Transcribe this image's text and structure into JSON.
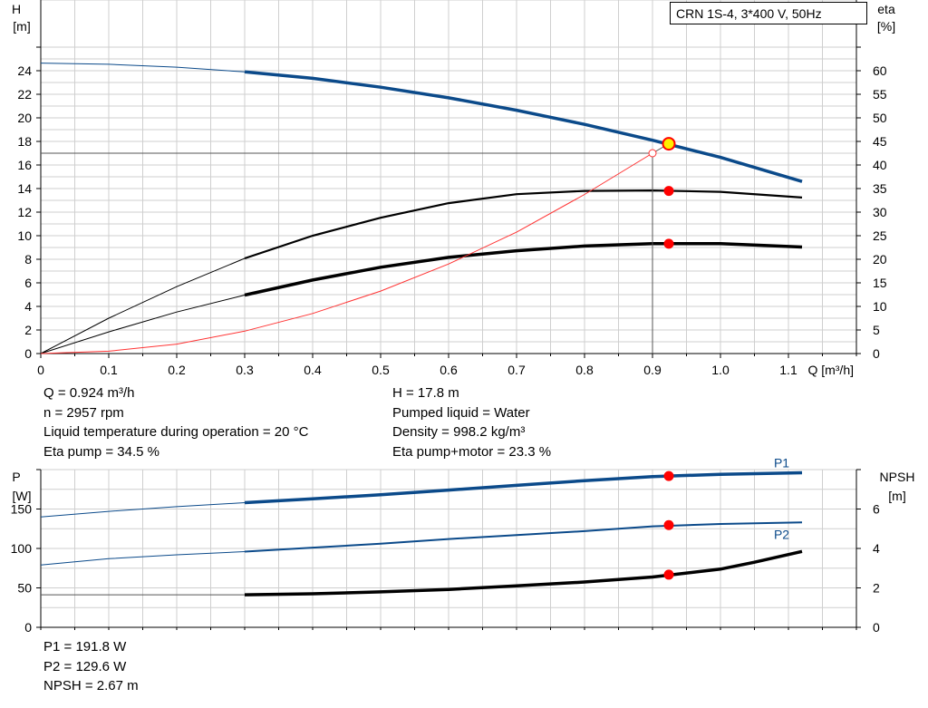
{
  "title_box": "CRN 1S-4, 3*400 V, 50Hz",
  "top_axes": {
    "h_label": "H",
    "h_unit": "[m]",
    "eta_label": "eta",
    "eta_unit": "[%]",
    "q_label": "Q [m³/h]"
  },
  "bottom_axes": {
    "p_label": "P",
    "p_unit": "[W]",
    "npsh_label": "NPSH",
    "npsh_unit": "[m]"
  },
  "info_left": [
    "Q = 0.924 m³/h",
    "n = 2957 rpm",
    "Liquid temperature during operation = 20 °C",
    "Eta pump = 34.5 %"
  ],
  "info_right": [
    "H = 17.8 m",
    "Pumped liquid = Water",
    "Density = 998.2 kg/m³",
    "Eta pump+motor = 23.3 %"
  ],
  "info_bottom": [
    "P1 = 191.8 W",
    "P2 = 129.6 W",
    "NPSH = 2.67 m"
  ],
  "colors": {
    "head": "#0b4a8a",
    "eta": "#000000",
    "system": "#ff3333",
    "marker": "#ff0000",
    "duty_marker": "#ffee00",
    "grid": "#cfcfcf"
  },
  "chart_data": [
    {
      "type": "line",
      "x_tick_labels": [
        "0",
        "0.1",
        "0.2",
        "0.3",
        "0.4",
        "0.5",
        "0.6",
        "0.7",
        "0.8",
        "0.9",
        "1.0",
        "1.1"
      ],
      "xlim": [
        0,
        1.2
      ],
      "ylim_left": [
        0,
        26
      ],
      "ylim_right": [
        0,
        65
      ],
      "y_left_ticks": [
        0,
        2,
        4,
        6,
        8,
        10,
        12,
        14,
        16,
        18,
        20,
        22,
        24
      ],
      "y_right_ticks": [
        0,
        5,
        10,
        15,
        20,
        25,
        30,
        35,
        40,
        45,
        50,
        55,
        60
      ],
      "grid": true,
      "series": [
        {
          "key": "head",
          "axis": "left",
          "x": [
            0,
            0.1,
            0.2,
            0.3,
            0.4,
            0.5,
            0.6,
            0.7,
            0.8,
            0.9,
            1.0,
            1.12
          ],
          "y": [
            24.65,
            24.55,
            24.3,
            23.9,
            23.35,
            22.6,
            21.7,
            20.65,
            19.45,
            18.1,
            16.65,
            14.6
          ]
        },
        {
          "key": "eta_pump",
          "axis": "right",
          "x": [
            0,
            0.1,
            0.2,
            0.3,
            0.4,
            0.5,
            0.6,
            0.7,
            0.8,
            0.9,
            1.0,
            1.12
          ],
          "y": [
            0,
            7.5,
            14.2,
            20.2,
            25.0,
            28.8,
            31.9,
            33.8,
            34.5,
            34.6,
            34.3,
            33.1
          ]
        },
        {
          "key": "eta_pump_motor",
          "axis": "right",
          "x": [
            0,
            0.1,
            0.2,
            0.3,
            0.4,
            0.5,
            0.6,
            0.7,
            0.8,
            0.9,
            1.0,
            1.12
          ],
          "y": [
            0,
            4.6,
            8.8,
            12.4,
            15.6,
            18.3,
            20.4,
            21.8,
            22.8,
            23.3,
            23.3,
            22.6
          ]
        },
        {
          "key": "system",
          "axis": "left",
          "x": [
            0,
            0.1,
            0.2,
            0.3,
            0.4,
            0.5,
            0.6,
            0.7,
            0.8,
            0.9
          ],
          "y": [
            0,
            0.2,
            0.8,
            1.9,
            3.4,
            5.3,
            7.6,
            10.3,
            13.5,
            17.0
          ]
        }
      ],
      "operating_point": {
        "q": 0.924,
        "h": 17.8,
        "eta_pump": 34.5,
        "eta_pump_motor": 23.3
      },
      "duty_point": {
        "q": 0.9,
        "h": 17.0
      }
    },
    {
      "type": "line",
      "xlim": [
        0,
        1.2
      ],
      "ylim_left": [
        0,
        200
      ],
      "ylim_right": [
        0,
        8
      ],
      "y_left_ticks": [
        0,
        50,
        100,
        150
      ],
      "y_right_ticks": [
        0,
        2,
        4,
        6
      ],
      "grid": true,
      "series": [
        {
          "key": "P1",
          "name": "P1",
          "axis": "left",
          "x": [
            0,
            0.1,
            0.2,
            0.3,
            0.4,
            0.5,
            0.6,
            0.7,
            0.8,
            0.9,
            1.0,
            1.12
          ],
          "y": [
            140,
            147,
            153,
            158,
            163,
            168,
            174,
            180,
            186,
            191,
            194,
            196
          ]
        },
        {
          "key": "P2",
          "name": "P2",
          "axis": "left",
          "x": [
            0,
            0.1,
            0.2,
            0.3,
            0.4,
            0.5,
            0.6,
            0.7,
            0.8,
            0.9,
            1.0,
            1.12
          ],
          "y": [
            79,
            87,
            92,
            96,
            101,
            106,
            112,
            117,
            122,
            128,
            131,
            133
          ]
        },
        {
          "key": "NPSH",
          "axis": "right",
          "x": [
            0.3,
            0.4,
            0.5,
            0.6,
            0.7,
            0.8,
            0.9,
            1.0,
            1.05,
            1.12
          ],
          "y": [
            1.65,
            1.7,
            1.8,
            1.92,
            2.1,
            2.3,
            2.55,
            2.95,
            3.3,
            3.85
          ]
        }
      ],
      "operating_point": {
        "q": 0.924,
        "p1": 191.8,
        "p2": 129.6,
        "npsh": 2.67
      }
    }
  ]
}
